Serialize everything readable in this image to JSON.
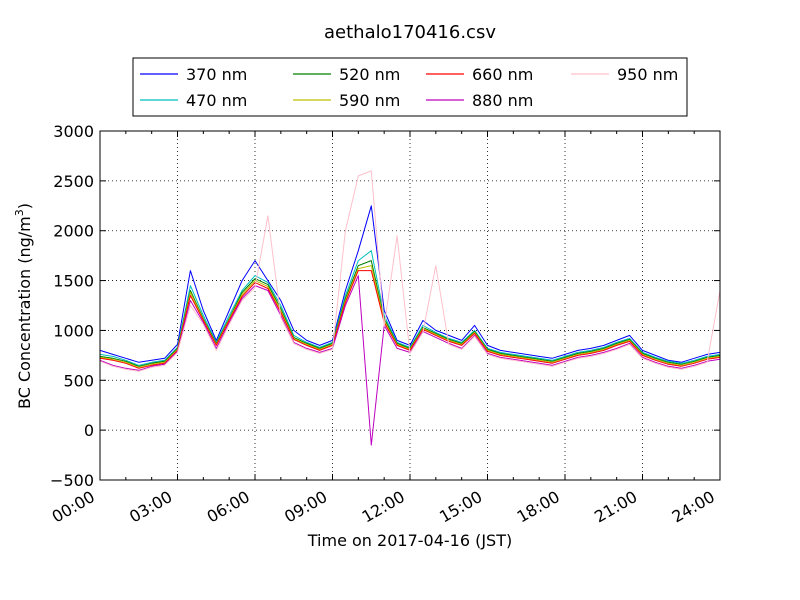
{
  "chart_data": {
    "type": "line",
    "title": "aethalo170416.csv",
    "xlabel": "Time on 2017-04-16 (JST)",
    "ylabel_main": "BC Concentration (ng/m",
    "ylabel_sup": "3",
    "ylabel_end": ")",
    "xlim": [
      0,
      24
    ],
    "ylim": [
      -500,
      3000
    ],
    "grid": true,
    "grid_style": "dotted",
    "legend_position": "top",
    "x_unit": "hours",
    "x_ticks": [
      0,
      3,
      6,
      9,
      12,
      15,
      18,
      21,
      24
    ],
    "x_tick_labels": [
      "00:00",
      "03:00",
      "06:00",
      "09:00",
      "12:00",
      "15:00",
      "18:00",
      "21:00",
      "24:00"
    ],
    "y_ticks": [
      -500,
      0,
      500,
      1000,
      1500,
      2000,
      2500,
      3000
    ],
    "y_tick_labels": [
      "−500",
      "0",
      "500",
      "1000",
      "1500",
      "2000",
      "2500",
      "3000"
    ],
    "x": [
      0.0,
      0.5,
      1.0,
      1.5,
      2.0,
      2.5,
      3.0,
      3.5,
      4.0,
      4.5,
      5.0,
      5.5,
      6.0,
      6.5,
      7.0,
      7.5,
      8.0,
      8.5,
      9.0,
      9.5,
      10.0,
      10.5,
      11.0,
      11.5,
      12.0,
      12.5,
      13.0,
      13.5,
      14.0,
      14.5,
      15.0,
      15.5,
      16.0,
      16.5,
      17.0,
      17.5,
      18.0,
      18.5,
      19.0,
      19.5,
      20.0,
      20.5,
      21.0,
      21.5,
      22.0,
      22.5,
      23.0,
      23.5,
      24.0
    ],
    "series": [
      {
        "name": "370 nm",
        "color": "#0000ff",
        "values": [
          800,
          760,
          720,
          680,
          700,
          720,
          860,
          1600,
          1200,
          900,
          1200,
          1500,
          1700,
          1500,
          1300,
          1000,
          900,
          850,
          900,
          1400,
          1800,
          2250,
          1200,
          900,
          850,
          1100,
          1000,
          950,
          900,
          1050,
          850,
          800,
          780,
          760,
          740,
          720,
          760,
          800,
          820,
          850,
          900,
          950,
          800,
          750,
          700,
          680,
          720,
          760,
          780
        ]
      },
      {
        "name": "470 nm",
        "color": "#00bfbf",
        "values": [
          760,
          740,
          700,
          650,
          680,
          700,
          830,
          1450,
          1150,
          880,
          1150,
          1400,
          1550,
          1480,
          1250,
          950,
          880,
          830,
          880,
          1350,
          1700,
          1800,
          1150,
          880,
          830,
          1050,
          980,
          920,
          880,
          1000,
          820,
          780,
          760,
          740,
          720,
          700,
          740,
          780,
          800,
          830,
          880,
          920,
          780,
          730,
          690,
          670,
          700,
          740,
          760
        ]
      },
      {
        "name": "520 nm",
        "color": "#008000",
        "values": [
          740,
          720,
          690,
          640,
          670,
          690,
          820,
          1400,
          1120,
          870,
          1120,
          1380,
          1520,
          1460,
          1220,
          930,
          870,
          820,
          870,
          1320,
          1650,
          1700,
          1120,
          870,
          820,
          1030,
          970,
          910,
          870,
          990,
          810,
          770,
          750,
          730,
          710,
          690,
          730,
          770,
          790,
          820,
          870,
          910,
          770,
          720,
          680,
          660,
          690,
          730,
          750
        ]
      },
      {
        "name": "590 nm",
        "color": "#bfbf00",
        "values": [
          730,
          710,
          680,
          630,
          660,
          680,
          810,
          1380,
          1110,
          860,
          1110,
          1360,
          1500,
          1440,
          1200,
          920,
          860,
          810,
          860,
          1300,
          1620,
          1650,
          1100,
          860,
          810,
          1020,
          960,
          900,
          860,
          980,
          800,
          760,
          740,
          720,
          700,
          680,
          720,
          760,
          780,
          810,
          860,
          900,
          760,
          710,
          670,
          650,
          680,
          720,
          740
        ]
      },
      {
        "name": "660 nm",
        "color": "#ff0000",
        "values": [
          720,
          700,
          670,
          620,
          650,
          670,
          800,
          1350,
          1100,
          850,
          1100,
          1340,
          1480,
          1420,
          1180,
          910,
          850,
          800,
          850,
          1280,
          1600,
          1600,
          1080,
          850,
          800,
          1010,
          950,
          890,
          850,
          970,
          790,
          750,
          730,
          710,
          690,
          670,
          710,
          750,
          770,
          800,
          850,
          890,
          750,
          700,
          660,
          640,
          670,
          710,
          730
        ]
      },
      {
        "name": "880 nm",
        "color": "#bf00bf",
        "values": [
          700,
          650,
          620,
          600,
          640,
          660,
          790,
          1300,
          1080,
          820,
          1080,
          1320,
          1450,
          1400,
          1150,
          880,
          820,
          780,
          820,
          1250,
          1550,
          -150,
          1050,
          820,
          780,
          990,
          930,
          870,
          820,
          950,
          770,
          730,
          710,
          690,
          670,
          650,
          690,
          730,
          750,
          780,
          820,
          870,
          730,
          680,
          640,
          620,
          650,
          690,
          710
        ]
      },
      {
        "name": "950 nm",
        "color": "#ffc0cb",
        "values": [
          690,
          640,
          610,
          590,
          630,
          650,
          780,
          1250,
          1060,
          800,
          1060,
          1300,
          1430,
          2150,
          1130,
          870,
          810,
          770,
          810,
          2000,
          2550,
          2600,
          1040,
          1950,
          770,
          980,
          1650,
          860,
          810,
          940,
          760,
          720,
          700,
          680,
          660,
          640,
          680,
          720,
          740,
          770,
          810,
          860,
          720,
          670,
          630,
          610,
          640,
          680,
          1400
        ]
      }
    ]
  }
}
